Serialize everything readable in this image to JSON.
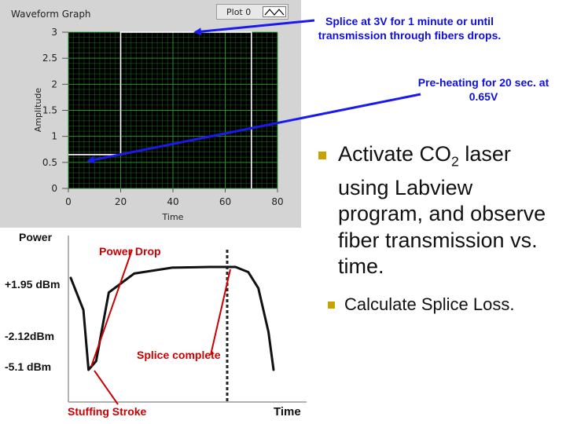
{
  "waveform_graph": {
    "title": "Waveform Graph",
    "legend_label": "Plot 0",
    "xlabel": "Time",
    "ylabel": "Amplitude",
    "x_ticks": [
      "0",
      "20",
      "40",
      "60",
      "80"
    ],
    "y_ticks": [
      "0",
      "0.5",
      "1",
      "1.5",
      "2",
      "2.5",
      "3"
    ]
  },
  "chart_data": [
    {
      "type": "line",
      "title": "Waveform Graph",
      "xlabel": "Time",
      "ylabel": "Amplitude",
      "xlim": [
        0,
        80
      ],
      "ylim": [
        0,
        3
      ],
      "grid": true,
      "legend": "top-right",
      "series": [
        {
          "name": "Plot 0",
          "x": [
            0,
            20,
            20,
            70,
            70
          ],
          "y": [
            0.65,
            0.65,
            3,
            3,
            0
          ]
        }
      ]
    },
    {
      "type": "line",
      "xlabel": "Time",
      "ylabel": "Power",
      "y_ticks": [
        "+1.95 dBm",
        "-2.12dBm",
        "-5.1 dBm"
      ],
      "series": [
        {
          "x": [
            0,
            5,
            7,
            10,
            15,
            25,
            40,
            55,
            65,
            70,
            74,
            78,
            80
          ],
          "y": [
            1.2,
            -1.0,
            -5.1,
            -4.5,
            0.2,
            1.5,
            1.9,
            1.95,
            1.95,
            1.6,
            0.5,
            -2.5,
            -5.1
          ]
        }
      ],
      "annotations": [
        "Power Drop",
        "Splice complete",
        "Stuffing Stroke"
      ]
    }
  ],
  "annotations": {
    "splice": "Splice at 3V for 1 minute or until transmission through fibers drops.",
    "preheat": "Pre-heating for 20 sec. at 0.65V"
  },
  "lower_chart": {
    "ylabel": "Power",
    "xlabel": "Time",
    "power_drop": "Power Drop",
    "splice_complete": "Splice complete",
    "stuffing_stroke": "Stuffing Stroke",
    "level_high": "+1.95 dBm",
    "level_mid": "-2.12dBm",
    "level_low": "-5.1 dBm"
  },
  "bullets": [
    {
      "text_before": "Activate CO",
      "sub": "2",
      "text_after": " laser using Labview program, and observe fiber transmission vs. time."
    },
    {
      "text": "Calculate Splice Loss."
    }
  ],
  "colors": {
    "arrow_blue": "#1a1aee",
    "label_red": "#cc0000",
    "bullet": "#caa200",
    "plot_bg": "#000000",
    "grid": "#2aa02a",
    "trace": "#ffffff"
  }
}
